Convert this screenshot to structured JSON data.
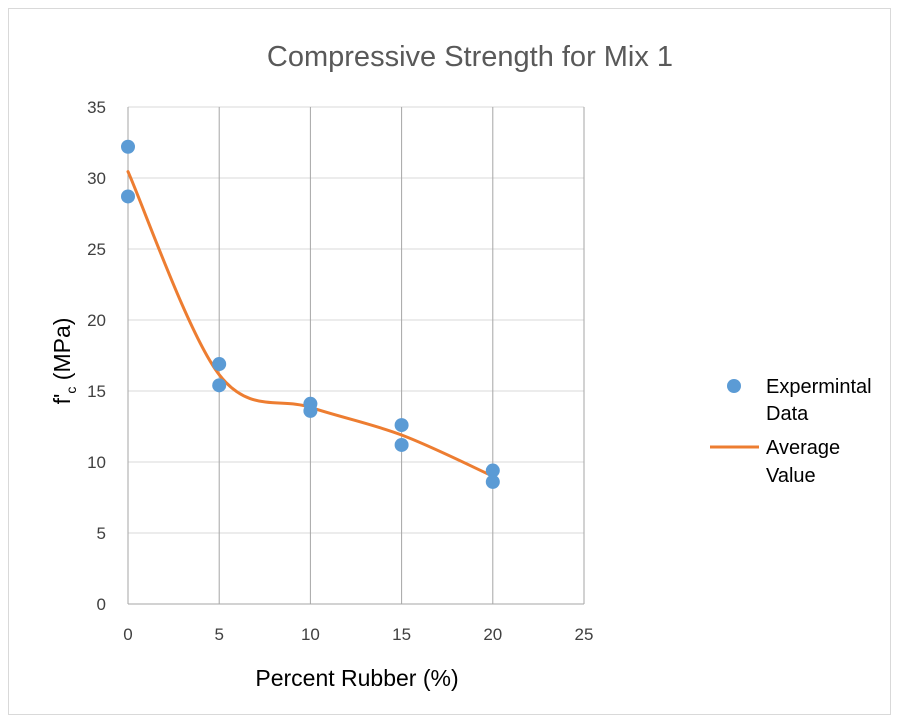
{
  "chart_data": {
    "type": "scatter",
    "title": "Compressive Strength for Mix 1",
    "xlabel": "Percent Rubber (%)",
    "ylabel_main": "f'",
    "ylabel_sub": "c",
    "ylabel_unit": " (MPa)",
    "xlim": [
      0,
      25
    ],
    "ylim": [
      0,
      35
    ],
    "x_ticks": [
      0,
      5,
      10,
      15,
      20,
      25
    ],
    "y_ticks": [
      0,
      5,
      10,
      15,
      20,
      25,
      30,
      35
    ],
    "grid": "both",
    "legend_position": "right",
    "series": [
      {
        "name_lines": [
          "Expermintal",
          "Data"
        ],
        "kind": "scatter",
        "color": "#5b9bd5",
        "points": [
          {
            "x": 0,
            "y": 32.2
          },
          {
            "x": 0,
            "y": 28.7
          },
          {
            "x": 5,
            "y": 16.9
          },
          {
            "x": 5,
            "y": 15.4
          },
          {
            "x": 10,
            "y": 14.1
          },
          {
            "x": 10,
            "y": 13.6
          },
          {
            "x": 15,
            "y": 12.6
          },
          {
            "x": 15,
            "y": 11.2
          },
          {
            "x": 20,
            "y": 9.4
          },
          {
            "x": 20,
            "y": 8.6
          }
        ]
      },
      {
        "name_lines": [
          "Average",
          "Value"
        ],
        "kind": "smooth-line",
        "color": "#ed7d31",
        "points": [
          {
            "x": 0,
            "y": 30.45
          },
          {
            "x": 5,
            "y": 16.15
          },
          {
            "x": 10,
            "y": 13.85
          },
          {
            "x": 15,
            "y": 11.9
          },
          {
            "x": 20,
            "y": 9.0
          }
        ]
      }
    ]
  }
}
